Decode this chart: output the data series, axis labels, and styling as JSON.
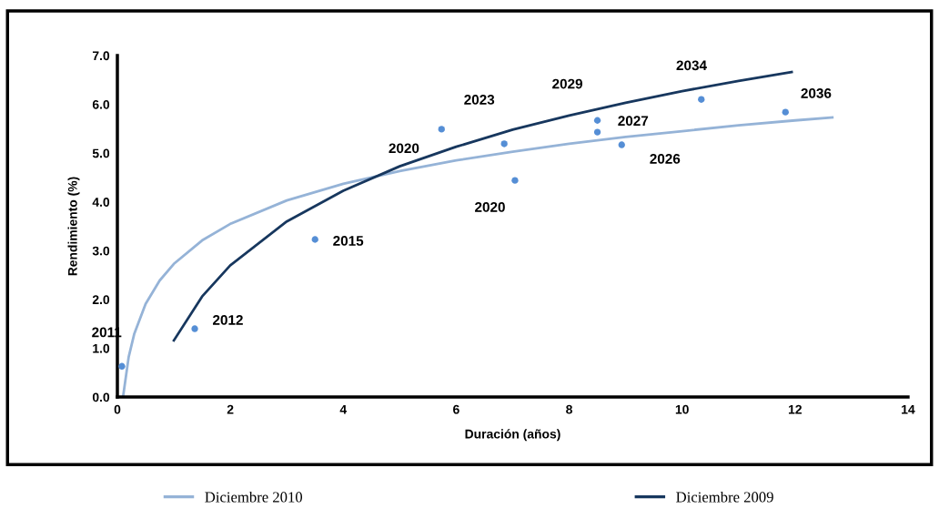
{
  "chart_data": {
    "type": "line",
    "xlabel": "Duración (años)",
    "ylabel": "Rendimiento (%)",
    "xlim": [
      0,
      14
    ],
    "xticks": [
      0,
      2,
      4,
      6,
      8,
      10,
      12,
      14
    ],
    "ylim": [
      0,
      7
    ],
    "yticks": [
      {
        "value": 0,
        "label": "0.0"
      },
      {
        "value": 1,
        "label": "1.0"
      },
      {
        "value": 2,
        "label": "2.0"
      },
      {
        "value": 3,
        "label": "3.0"
      },
      {
        "value": 4,
        "label": "4.0"
      },
      {
        "value": 5,
        "label": "5.0"
      },
      {
        "value": 6,
        "label": "6.0"
      },
      {
        "value": 7,
        "label": "7.0"
      }
    ],
    "grid": false,
    "legend": "bottom",
    "series": [
      {
        "name": "Diciembre 2010",
        "color": "#95b3d7",
        "x": [
          0.1,
          0.2,
          0.3,
          0.5,
          0.75,
          1,
          1.5,
          2,
          3,
          4,
          5,
          6,
          7,
          8,
          9,
          10,
          11,
          12,
          12.66
        ],
        "values": [
          0.0,
          0.82,
          1.3,
          1.91,
          2.39,
          2.73,
          3.21,
          3.55,
          4.03,
          4.37,
          4.63,
          4.85,
          5.03,
          5.19,
          5.33,
          5.45,
          5.57,
          5.67,
          5.73
        ]
      },
      {
        "name": "Diciembre 2009",
        "color": "#17375e",
        "x": [
          1,
          1.5,
          2,
          3,
          4,
          5,
          6,
          7,
          8,
          9,
          10,
          11,
          11.94
        ],
        "values": [
          1.16,
          2.06,
          2.7,
          3.6,
          4.23,
          4.73,
          5.13,
          5.48,
          5.77,
          6.03,
          6.27,
          6.48,
          6.66
        ]
      },
      {
        "type": "scatter",
        "marker": "circle",
        "color": "#558ed5",
        "x": [
          0.08,
          1.37,
          3.5,
          5.74,
          6.85,
          7.04,
          8.5,
          8.5,
          8.93,
          10.34,
          11.83
        ],
        "values": [
          0.63,
          1.4,
          3.23,
          5.49,
          5.19,
          4.44,
          5.67,
          5.43,
          5.17,
          6.1,
          5.84
        ]
      }
    ],
    "annotations": [
      {
        "text": "2011",
        "x": 0.08,
        "y": 0.63
      },
      {
        "text": "2012",
        "x": 1.37,
        "y": 1.4
      },
      {
        "text": "2015",
        "x": 3.5,
        "y": 3.23
      },
      {
        "text": "2020",
        "x": 5.74,
        "y": 5.49
      },
      {
        "text": "2023",
        "x": 6.85,
        "y": 5.19
      },
      {
        "text": "2020",
        "x": 7.04,
        "y": 4.44
      },
      {
        "text": "2029",
        "x": 8.5,
        "y": 5.67
      },
      {
        "text": "2027",
        "x": 8.5,
        "y": 5.43
      },
      {
        "text": "2026",
        "x": 8.93,
        "y": 5.17
      },
      {
        "text": "2034",
        "x": 10.34,
        "y": 6.1
      },
      {
        "text": "2036",
        "x": 11.83,
        "y": 5.84
      }
    ]
  }
}
